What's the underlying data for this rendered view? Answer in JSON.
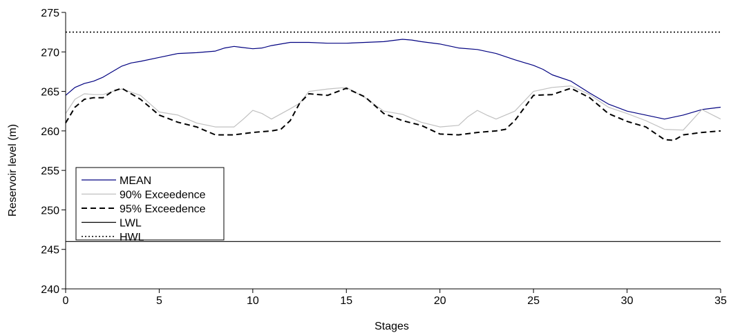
{
  "chart_data": {
    "type": "line",
    "title": "",
    "xlabel": "Stages",
    "ylabel": "Reservoir level (m)",
    "xlim": [
      0,
      35
    ],
    "ylim": [
      240,
      275
    ],
    "xticks": [
      0,
      5,
      10,
      15,
      20,
      25,
      30,
      35
    ],
    "yticks": [
      240,
      245,
      250,
      255,
      260,
      265,
      270,
      275
    ],
    "grid": false,
    "legend_position": "left",
    "series": [
      {
        "name": "MEAN",
        "color": "#000080",
        "style": "solid",
        "x": [
          0,
          0.5,
          1,
          1.5,
          2,
          2.5,
          3,
          3.5,
          4,
          5,
          6,
          7,
          8,
          8.5,
          9,
          9.3,
          10,
          10.5,
          11,
          12,
          13,
          14,
          15,
          16,
          17,
          18,
          18.5,
          19,
          20,
          21,
          22,
          23,
          24,
          25,
          25.5,
          26,
          27,
          28,
          29,
          30,
          31,
          32,
          33,
          34,
          35
        ],
        "y": [
          264.5,
          265.5,
          266.0,
          266.3,
          266.8,
          267.5,
          268.2,
          268.6,
          268.8,
          269.3,
          269.8,
          269.9,
          270.1,
          270.5,
          270.7,
          270.6,
          270.4,
          270.5,
          270.8,
          271.2,
          271.2,
          271.1,
          271.1,
          271.2,
          271.3,
          271.6,
          271.5,
          271.3,
          271.0,
          270.5,
          270.3,
          269.8,
          269.0,
          268.3,
          267.8,
          267.1,
          266.3,
          264.8,
          263.4,
          262.5,
          262.0,
          261.5,
          262.0,
          262.7,
          263.0
        ]
      },
      {
        "name": "90% Exceedence",
        "color": "#c0c0c0",
        "style": "solid",
        "x": [
          0,
          0.5,
          1,
          1.5,
          2,
          2.5,
          3,
          4,
          5,
          6,
          7,
          8,
          9,
          9.5,
          10,
          10.5,
          11,
          12,
          12.5,
          13,
          14,
          15,
          16,
          17,
          18,
          19,
          20,
          21,
          21.5,
          22,
          22.5,
          23,
          24,
          25,
          26,
          27,
          28,
          29,
          30,
          31,
          32,
          33,
          34,
          35
        ],
        "y": [
          262.2,
          264.0,
          264.7,
          264.6,
          264.6,
          265.0,
          265.3,
          264.5,
          262.4,
          262.0,
          261.0,
          260.5,
          260.5,
          261.5,
          262.6,
          262.2,
          261.5,
          262.8,
          263.5,
          265.0,
          265.3,
          265.5,
          264.2,
          262.5,
          262.1,
          261.1,
          260.5,
          260.7,
          261.8,
          262.6,
          262.0,
          261.5,
          262.5,
          265.0,
          265.5,
          265.7,
          264.6,
          263.0,
          262.2,
          261.3,
          260.2,
          260.1,
          262.7,
          261.5
        ]
      },
      {
        "name": "95% Exceedence",
        "color": "#000000",
        "style": "dashed",
        "x": [
          0,
          0.5,
          1,
          1.5,
          2,
          2.5,
          3,
          4,
          5,
          6,
          7,
          8,
          9,
          10,
          11,
          11.5,
          12,
          12.5,
          13,
          14,
          15,
          16,
          17,
          18,
          19,
          20,
          21,
          22,
          23,
          23.5,
          24,
          25,
          26,
          27,
          28,
          29,
          30,
          31,
          32,
          32.5,
          33,
          34,
          35
        ],
        "y": [
          261.0,
          263.0,
          264.0,
          264.2,
          264.2,
          265.0,
          265.4,
          264.0,
          262.0,
          261.1,
          260.5,
          259.5,
          259.5,
          259.8,
          260.0,
          260.2,
          261.3,
          263.5,
          264.7,
          264.5,
          265.4,
          264.3,
          262.2,
          261.3,
          260.7,
          259.6,
          259.5,
          259.8,
          260.0,
          260.2,
          261.3,
          264.5,
          264.6,
          265.4,
          264.2,
          262.2,
          261.2,
          260.5,
          258.9,
          258.8,
          259.5,
          259.8,
          260.0
        ]
      },
      {
        "name": "LWL",
        "color": "#000000",
        "style": "solid",
        "x": [
          0,
          35
        ],
        "y": [
          246.0,
          246.0
        ]
      },
      {
        "name": "HWL",
        "color": "#000000",
        "style": "dotted",
        "x": [
          0,
          35
        ],
        "y": [
          272.5,
          272.5
        ]
      }
    ]
  }
}
